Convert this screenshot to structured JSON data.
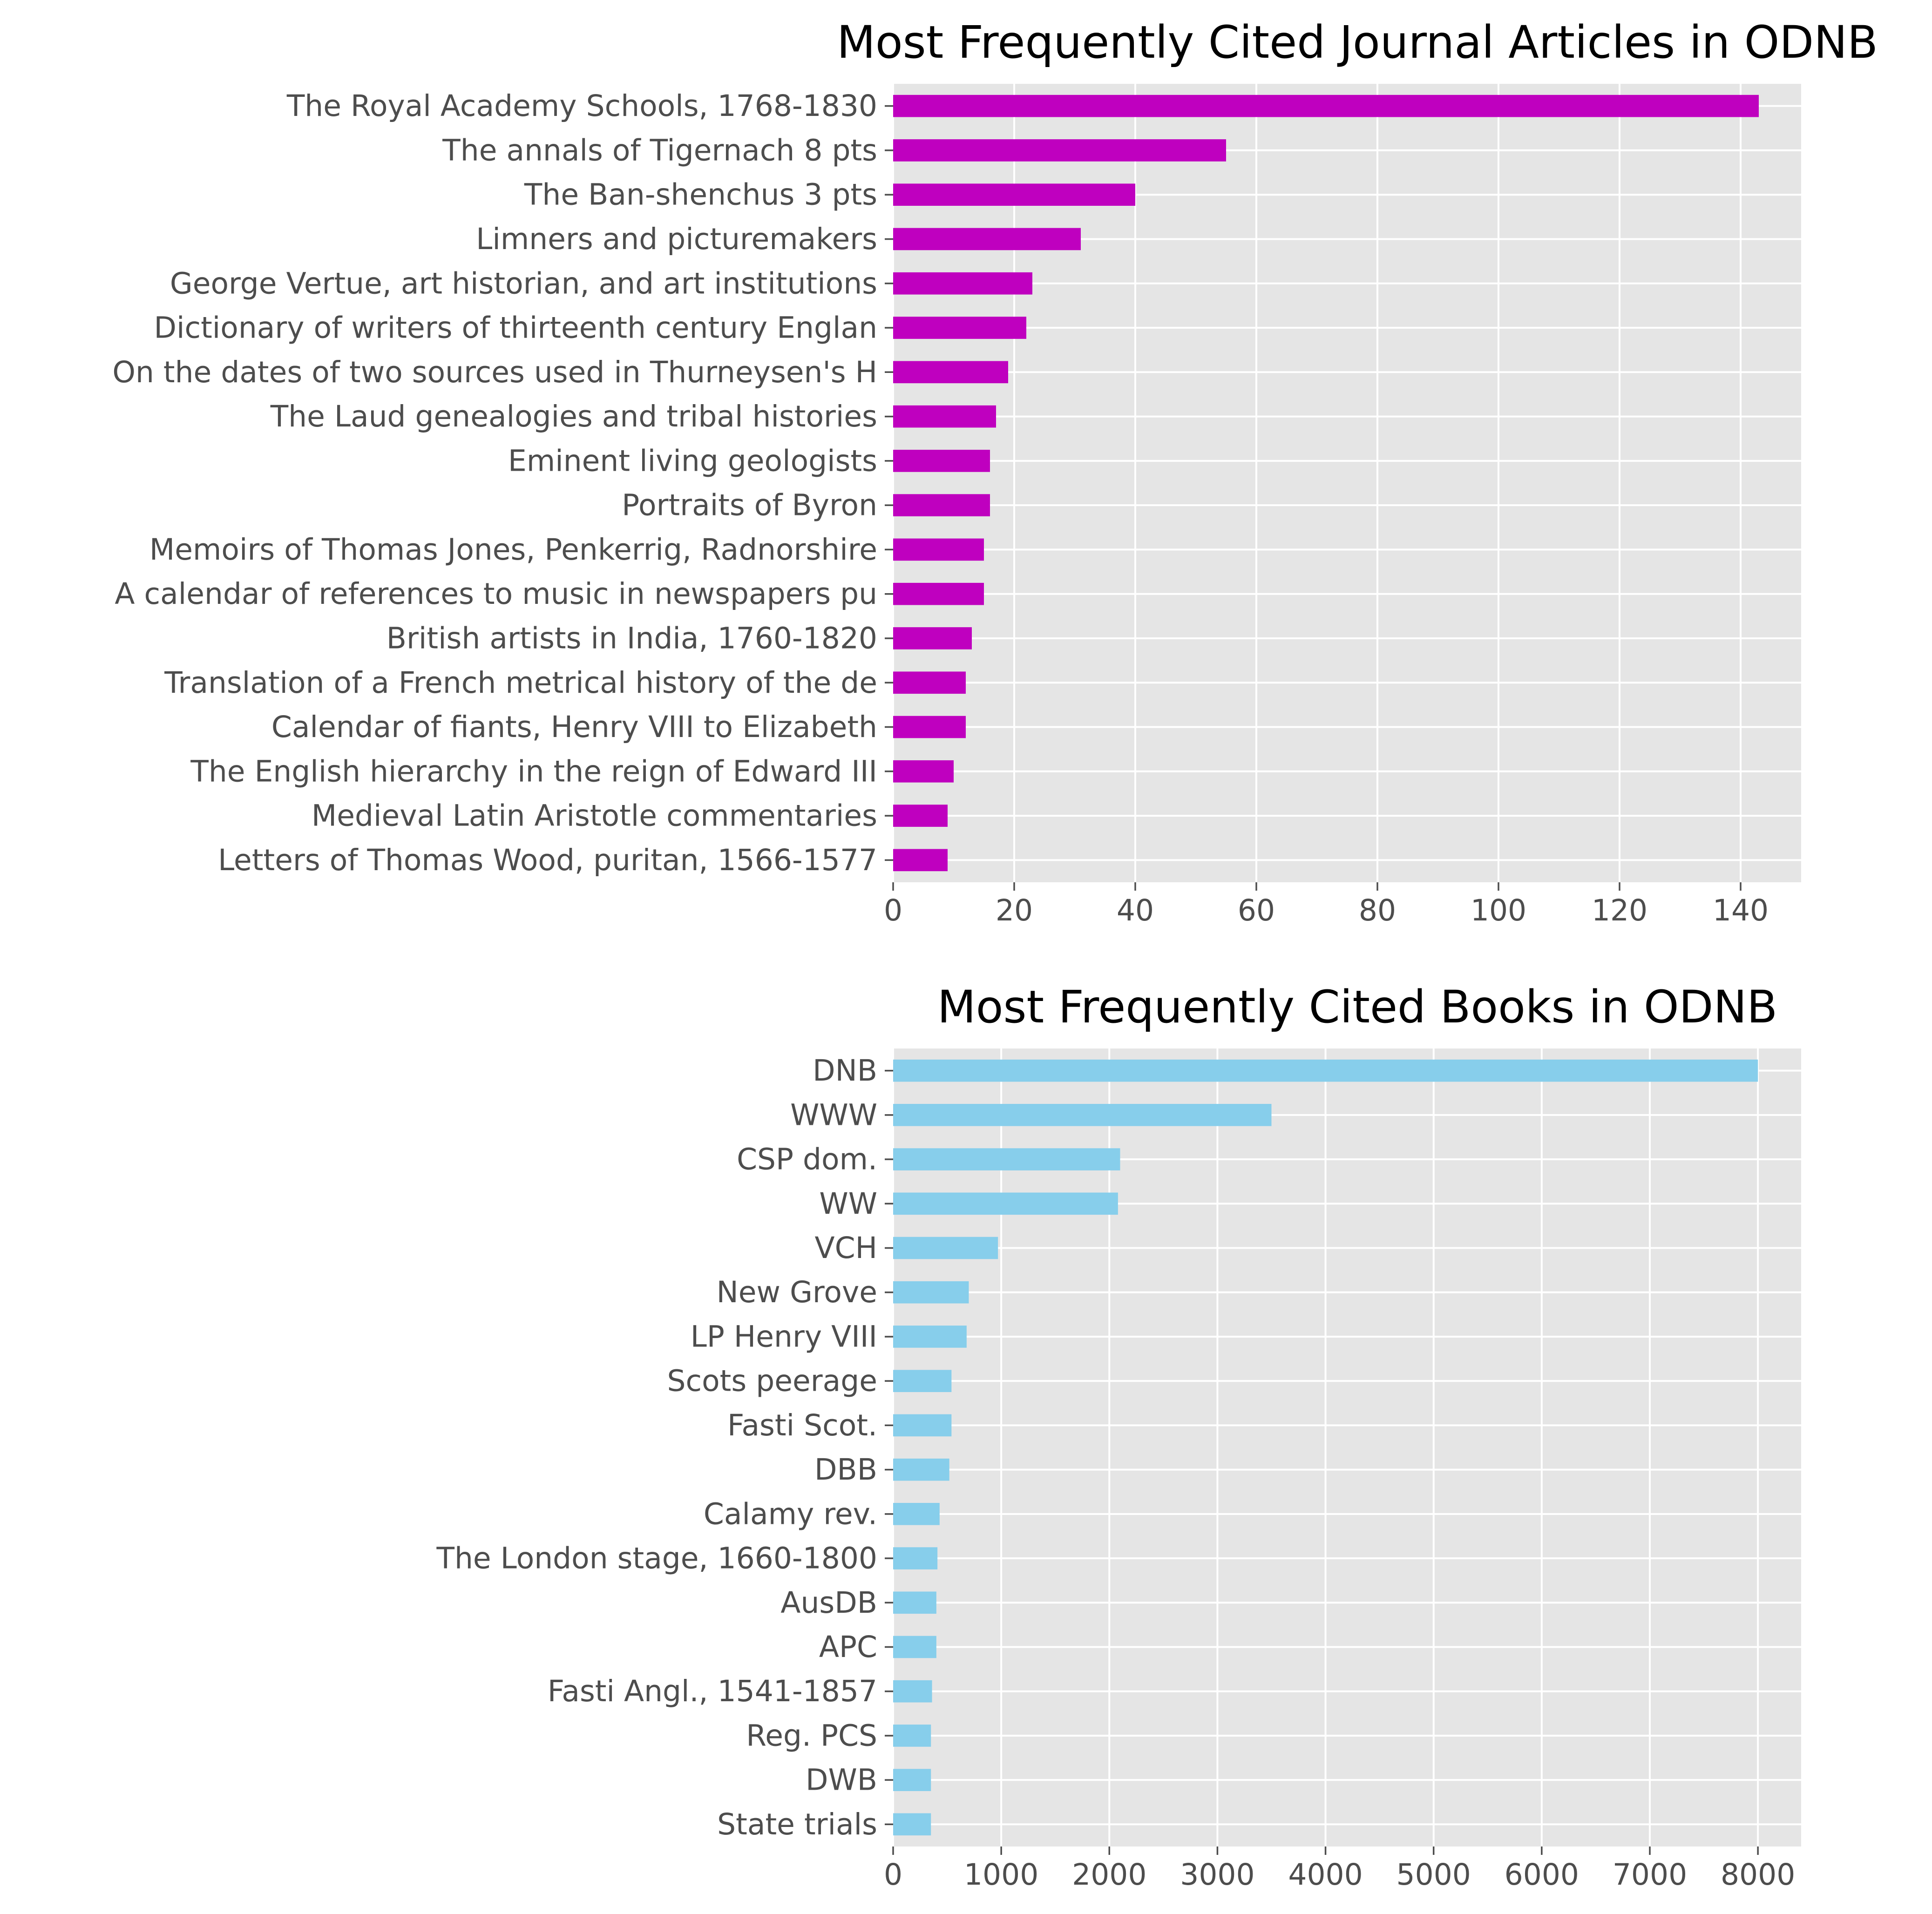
{
  "chart_data": [
    {
      "type": "bar",
      "orientation": "horizontal",
      "title": "Most Frequently Cited Journal Articles in ODNB",
      "xlabel": "",
      "ylabel": "",
      "xlim": [
        0,
        150
      ],
      "xticks": [
        0,
        20,
        40,
        60,
        80,
        100,
        120,
        140
      ],
      "grid": true,
      "color": "#bf00bf",
      "categories": [
        "The Royal Academy Schools, 1768-1830",
        "The annals of Tigernach 8 pts",
        "The Ban-shenchus 3 pts",
        "Limners and picturemakers",
        "George Vertue, art historian, and art institutions",
        "Dictionary of writers of thirteenth century Englan",
        "On the dates of two sources used in Thurneysen's H",
        "The Laud genealogies and tribal histories",
        "Eminent living geologists",
        "Portraits of Byron",
        "Memoirs of Thomas Jones, Penkerrig, Radnorshire",
        "A calendar of references to music in newspapers pu",
        "British artists in India, 1760-1820",
        "Translation of a French metrical history of the de",
        "Calendar of fiants, Henry VIII to Elizabeth",
        "The English hierarchy in the reign of Edward III",
        "Medieval Latin Aristotle commentaries",
        "Letters of Thomas Wood, puritan, 1566-1577"
      ],
      "values": [
        143,
        55,
        40,
        31,
        23,
        22,
        19,
        17,
        16,
        16,
        15,
        15,
        13,
        12,
        12,
        10,
        9,
        9
      ]
    },
    {
      "type": "bar",
      "orientation": "horizontal",
      "title": "Most Frequently Cited Books in ODNB",
      "xlabel": "",
      "ylabel": "",
      "xlim": [
        0,
        8400
      ],
      "xticks": [
        0,
        1000,
        2000,
        3000,
        4000,
        5000,
        6000,
        7000,
        8000
      ],
      "grid": true,
      "color": "#87ceeb",
      "categories": [
        "DNB",
        "WWW",
        "CSP dom.",
        "WW",
        "VCH",
        "New Grove",
        "LP Henry VIII",
        "Scots peerage",
        "Fasti Scot.",
        "DBB",
        "Calamy rev.",
        "The London stage, 1660-1800",
        "AusDB",
        "APC",
        "Fasti Angl., 1541-1857",
        "Reg. PCS",
        "DWB",
        "State trials"
      ],
      "values": [
        8000,
        3500,
        2100,
        2080,
        970,
        700,
        680,
        540,
        540,
        520,
        430,
        410,
        400,
        400,
        360,
        350,
        350,
        350
      ]
    }
  ]
}
